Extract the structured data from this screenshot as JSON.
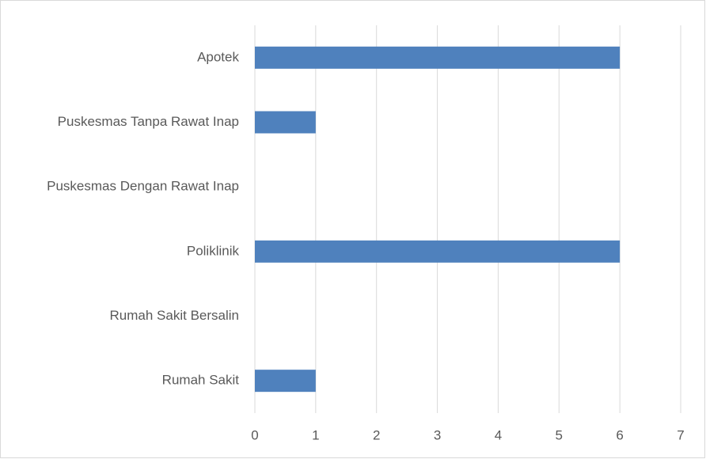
{
  "chart_data": {
    "type": "bar",
    "orientation": "horizontal",
    "categories": [
      "Apotek",
      "Puskesmas Tanpa Rawat Inap",
      "Puskesmas Dengan Rawat Inap",
      "Poliklinik",
      "Rumah Sakit Bersalin",
      "Rumah Sakit"
    ],
    "values": [
      6,
      1,
      0,
      6,
      0,
      1
    ],
    "color": "#4f81bd",
    "xlim": [
      0,
      7
    ],
    "xticks": [
      0,
      1,
      2,
      3,
      4,
      5,
      6,
      7
    ],
    "grid": true
  }
}
